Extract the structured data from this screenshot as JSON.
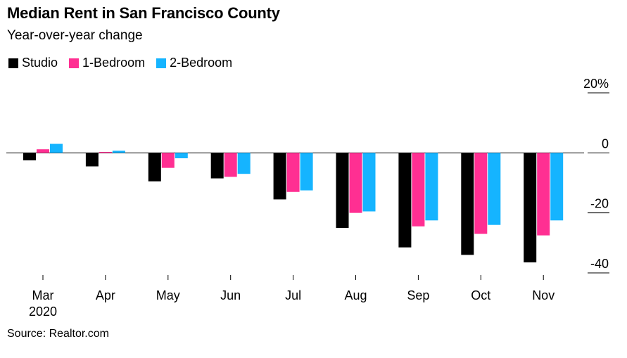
{
  "chart_data": {
    "type": "bar",
    "title": "Median Rent in San Francisco County",
    "subtitle": "Year-over-year change",
    "categories": [
      "Mar",
      "Apr",
      "May",
      "Jun",
      "Jul",
      "Aug",
      "Sep",
      "Oct",
      "Nov"
    ],
    "category_sublabels": [
      "2020",
      "",
      "",
      "",
      "",
      "",
      "",
      "",
      ""
    ],
    "series": [
      {
        "name": "Studio",
        "color": "#000000",
        "values": [
          -2.5,
          -4.5,
          -9.5,
          -8.5,
          -15.5,
          -25.0,
          -31.5,
          -34.0,
          -36.5
        ]
      },
      {
        "name": "1-Bedroom",
        "color": "#ff2f92",
        "values": [
          1.2,
          0.3,
          -5.0,
          -8.0,
          -13.0,
          -20.0,
          -24.5,
          -27.0,
          -27.5
        ]
      },
      {
        "name": "2-Bedroom",
        "color": "#15b4ff",
        "values": [
          3.0,
          0.7,
          -1.8,
          -7.0,
          -12.5,
          -19.5,
          -22.5,
          -24.0,
          -22.5
        ]
      }
    ],
    "ylim": [
      -40,
      20
    ],
    "yticks": [
      {
        "value": 20,
        "label": "20%"
      },
      {
        "value": 0,
        "label": "0"
      },
      {
        "value": -20,
        "label": "-20"
      },
      {
        "value": -40,
        "label": "-40"
      }
    ],
    "legend_position": "top-left",
    "source": "Source: Realtor.com"
  }
}
